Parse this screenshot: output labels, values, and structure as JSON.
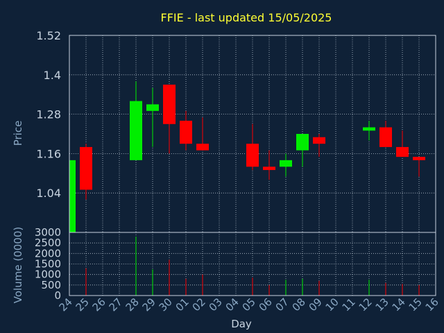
{
  "chart_data": {
    "type": "candlestick",
    "title": "FFIE - last updated 15/05/2025",
    "xlabel": "Day",
    "ylabel": "Price",
    "volume_ylabel": "Volume (0000)",
    "x_ticks": [
      "24",
      "25",
      "26",
      "27",
      "28",
      "29",
      "30",
      "01",
      "02",
      "03",
      "04",
      "05",
      "06",
      "07",
      "08",
      "09",
      "10",
      "11",
      "12",
      "13",
      "14",
      "15",
      "16"
    ],
    "price_ticks": [
      1.04,
      1.16,
      1.28,
      1.4,
      1.52
    ],
    "price_tick_labels": [
      "1.04",
      "1.16",
      "1.28",
      "1.4",
      "1.52"
    ],
    "ylim": [
      0.92,
      1.52
    ],
    "volume_ticks": [
      0,
      500,
      1000,
      1500,
      2000,
      2500,
      3000
    ],
    "volume_tick_labels": [
      "0",
      "500",
      "1000",
      "1500",
      "2000",
      "2500",
      "3000"
    ],
    "volume_ylim": [
      0,
      3000
    ],
    "grid": true,
    "colors": {
      "background": "#0f2137",
      "title": "#ffff33",
      "axis_text": "#8aa8c4",
      "tick_text": "#c8d4e0",
      "frame": "#c8d4e0",
      "grid": "#b8c4d0",
      "up": "#00ee00",
      "down": "#ff0000"
    },
    "candles": [
      {
        "day": "24",
        "open": 0.92,
        "high": 1.15,
        "low": 0.92,
        "close": 1.14,
        "volume": 0
      },
      {
        "day": "25",
        "open": 1.18,
        "high": 1.19,
        "low": 1.02,
        "close": 1.05,
        "volume": 1300
      },
      {
        "day": "28",
        "open": 1.14,
        "high": 1.38,
        "low": 1.14,
        "close": 1.32,
        "volume": 2800
      },
      {
        "day": "29",
        "open": 1.29,
        "high": 1.36,
        "low": 1.18,
        "close": 1.31,
        "volume": 1250
      },
      {
        "day": "30",
        "open": 1.37,
        "high": 1.37,
        "low": 1.16,
        "close": 1.25,
        "volume": 1700
      },
      {
        "day": "01",
        "open": 1.26,
        "high": 1.29,
        "low": 1.17,
        "close": 1.19,
        "volume": 800
      },
      {
        "day": "02",
        "open": 1.19,
        "high": 1.27,
        "low": 1.17,
        "close": 1.17,
        "volume": 1000
      },
      {
        "day": "05",
        "open": 1.19,
        "high": 1.25,
        "low": 1.11,
        "close": 1.12,
        "volume": 850
      },
      {
        "day": "06",
        "open": 1.12,
        "high": 1.17,
        "low": 1.08,
        "close": 1.11,
        "volume": 500
      },
      {
        "day": "07",
        "open": 1.12,
        "high": 1.16,
        "low": 1.09,
        "close": 1.14,
        "volume": 750
      },
      {
        "day": "08",
        "open": 1.17,
        "high": 1.22,
        "low": 1.12,
        "close": 1.22,
        "volume": 800
      },
      {
        "day": "09",
        "open": 1.21,
        "high": 1.22,
        "low": 1.15,
        "close": 1.19,
        "volume": 700
      },
      {
        "day": "12",
        "open": 1.23,
        "high": 1.26,
        "low": 1.2,
        "close": 1.24,
        "volume": 750
      },
      {
        "day": "13",
        "open": 1.24,
        "high": 1.26,
        "low": 1.18,
        "close": 1.18,
        "volume": 600
      },
      {
        "day": "14",
        "open": 1.18,
        "high": 1.23,
        "low": 1.15,
        "close": 1.15,
        "volume": 550
      },
      {
        "day": "15",
        "open": 1.15,
        "high": 1.15,
        "low": 1.09,
        "close": 1.14,
        "volume": 500
      }
    ]
  }
}
